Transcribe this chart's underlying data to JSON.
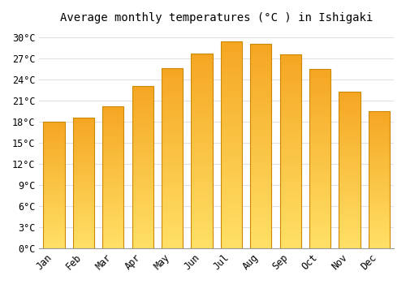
{
  "title": "Average monthly temperatures (°C ) in Ishigaki",
  "months": [
    "Jan",
    "Feb",
    "Mar",
    "Apr",
    "May",
    "Jun",
    "Jul",
    "Aug",
    "Sep",
    "Oct",
    "Nov",
    "Dec"
  ],
  "temperatures": [
    18.0,
    18.5,
    20.2,
    23.0,
    25.6,
    27.7,
    29.4,
    29.0,
    27.6,
    25.5,
    22.2,
    19.5
  ],
  "bar_color_top": "#F5A623",
  "bar_color_bottom": "#FFE066",
  "bar_edge_color": "#CC8800",
  "ylim": [
    0,
    31
  ],
  "yticks": [
    0,
    3,
    6,
    9,
    12,
    15,
    18,
    21,
    24,
    27,
    30
  ],
  "background_color": "#FFFFFF",
  "grid_color": "#E0E0E0",
  "title_fontsize": 10,
  "tick_fontsize": 8.5,
  "bar_width": 0.72
}
